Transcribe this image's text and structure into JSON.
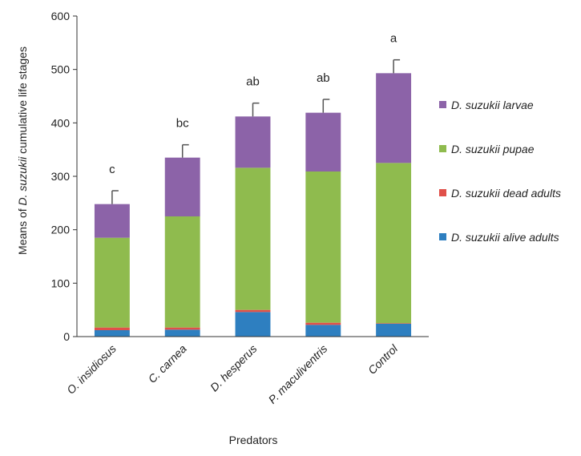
{
  "chart_data": {
    "type": "bar",
    "stacked": true,
    "xlabel": "Predators",
    "ylabel_parts": [
      "Means of ",
      "D. suzukii",
      " cumulative life stages"
    ],
    "ylim": [
      0,
      600
    ],
    "yticks": [
      0,
      100,
      200,
      300,
      400,
      500,
      600
    ],
    "grid": false,
    "legend_position": "right",
    "categories": [
      "O. insidiosus",
      "C. carnea",
      "D. hesperus",
      "P. maculiventris",
      "Control"
    ],
    "series": [
      {
        "name": "D. suzukii alive adults",
        "color": "#2e7fc0",
        "values": [
          12,
          13,
          46,
          22,
          24
        ]
      },
      {
        "name": "D. suzukii dead adults",
        "color": "#e0504a",
        "values": [
          5,
          4,
          4,
          4,
          1
        ]
      },
      {
        "name": "D. suzukii pupae",
        "color": "#8fbb4e",
        "values": [
          168,
          208,
          266,
          283,
          300
        ]
      },
      {
        "name": "D. suzukii larvae",
        "color": "#8c63a8",
        "values": [
          63,
          110,
          96,
          110,
          168
        ]
      }
    ],
    "legend_order": [
      3,
      2,
      1,
      0
    ],
    "totals": [
      248,
      335,
      412,
      419,
      493
    ],
    "error_plus": [
      25,
      24,
      25,
      25,
      25
    ],
    "significance_letters": [
      "c",
      "bc",
      "ab",
      "ab",
      "a"
    ]
  }
}
